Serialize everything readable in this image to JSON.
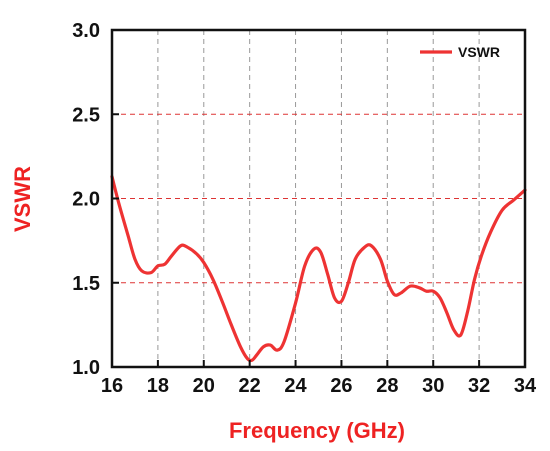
{
  "chart_data": {
    "type": "line",
    "xlabel": "Frequency (GHz)",
    "ylabel": "VSWR",
    "xlim": [
      16,
      34
    ],
    "ylim": [
      1.0,
      3.0
    ],
    "x_ticks": [
      "16",
      "18",
      "20",
      "22",
      "24",
      "26",
      "28",
      "30",
      "32",
      "34"
    ],
    "y_ticks": [
      "1.0",
      "1.5",
      "2.0",
      "2.5",
      "3.0"
    ],
    "grid": {
      "vertical": true,
      "horizontal": true
    },
    "legend_position": "top-right",
    "colors": {
      "series": "#ee3333",
      "axis_title": "#ee2222",
      "h_grid": "#dd3333",
      "v_grid": "#999999",
      "frame": "#111111"
    },
    "series": [
      {
        "name": "VSWR",
        "x": [
          16,
          16.3,
          16.7,
          17.0,
          17.3,
          17.7,
          18.0,
          18.3,
          18.6,
          19.0,
          19.3,
          19.7,
          20.0,
          20.4,
          20.8,
          21.2,
          21.6,
          21.9,
          22.1,
          22.3,
          22.6,
          22.9,
          23.2,
          23.5,
          24.0,
          24.4,
          24.8,
          25.1,
          25.4,
          25.7,
          26.0,
          26.3,
          26.6,
          27.0,
          27.3,
          27.7,
          28.0,
          28.3,
          28.6,
          29.0,
          29.4,
          29.7,
          30.0,
          30.3,
          30.6,
          30.9,
          31.2,
          31.5,
          31.8,
          32.1,
          32.5,
          33.0,
          33.5,
          34.0
        ],
        "values": [
          2.13,
          1.97,
          1.78,
          1.64,
          1.57,
          1.56,
          1.6,
          1.61,
          1.66,
          1.72,
          1.71,
          1.67,
          1.62,
          1.52,
          1.39,
          1.25,
          1.12,
          1.05,
          1.04,
          1.07,
          1.12,
          1.13,
          1.1,
          1.15,
          1.38,
          1.6,
          1.7,
          1.68,
          1.55,
          1.41,
          1.39,
          1.5,
          1.64,
          1.71,
          1.72,
          1.64,
          1.51,
          1.43,
          1.44,
          1.48,
          1.47,
          1.45,
          1.45,
          1.41,
          1.32,
          1.22,
          1.19,
          1.33,
          1.52,
          1.66,
          1.8,
          1.93,
          1.99,
          2.05
        ]
      }
    ]
  }
}
